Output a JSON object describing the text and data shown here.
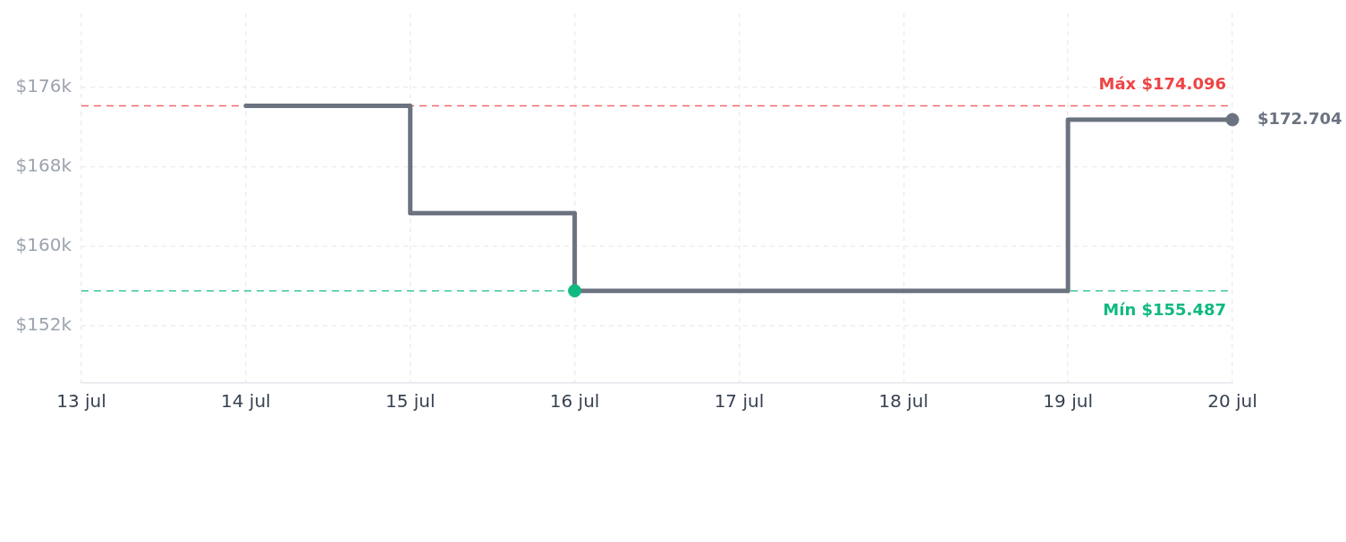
{
  "chart_data": {
    "type": "step",
    "x": [
      "--07-14",
      "--07-15",
      "--07-16",
      "--07-17",
      "--07-18",
      "--07-19",
      "--07-20"
    ],
    "series": [
      {
        "color": "#6b7280",
        "values": [
          174096,
          163300,
          155487,
          155487,
          155487,
          172704,
          172704
        ]
      },
      {
        "type": "scatter",
        "color": "#6b7280",
        "x": [
          "--07-20"
        ],
        "values": [
          172704
        ],
        "marker": "circle"
      },
      {
        "type": "scatter",
        "color": "#10b981",
        "x": [
          "--07-16"
        ],
        "values": [
          155487
        ],
        "marker": "circle"
      }
    ],
    "xlim": [
      "--07-13",
      "--07-20"
    ],
    "xticks": [
      {
        "value": "--07-13",
        "label": "13 jul"
      },
      {
        "value": "--07-14",
        "label": "14 jul"
      },
      {
        "value": "--07-15",
        "label": "15 jul"
      },
      {
        "value": "--07-16",
        "label": "16 jul"
      },
      {
        "value": "--07-17",
        "label": "17 jul"
      },
      {
        "value": "--07-18",
        "label": "18 jul"
      },
      {
        "value": "--07-19",
        "label": "19 jul"
      },
      {
        "value": "--07-20",
        "label": "20 jul"
      }
    ],
    "ylim": [
      146200,
      183400
    ],
    "yticks": [
      {
        "value": 152000,
        "label": "$152k"
      },
      {
        "value": 160000,
        "label": "$160k"
      },
      {
        "value": 168000,
        "label": "$168k"
      },
      {
        "value": 176000,
        "label": "$176k"
      }
    ],
    "ref_lines": [
      {
        "axis": "y",
        "value": 174096,
        "label": "Máx $174.096",
        "color": "#ef4444",
        "line_style": "dashed"
      },
      {
        "axis": "y",
        "value": 155487,
        "label": "Mín $155.487",
        "color": "#10b981",
        "line_style": "dashed"
      }
    ],
    "annotations": [
      {
        "text": "$172.704",
        "x": "--07-20",
        "y": 172704
      }
    ],
    "grid": true
  }
}
